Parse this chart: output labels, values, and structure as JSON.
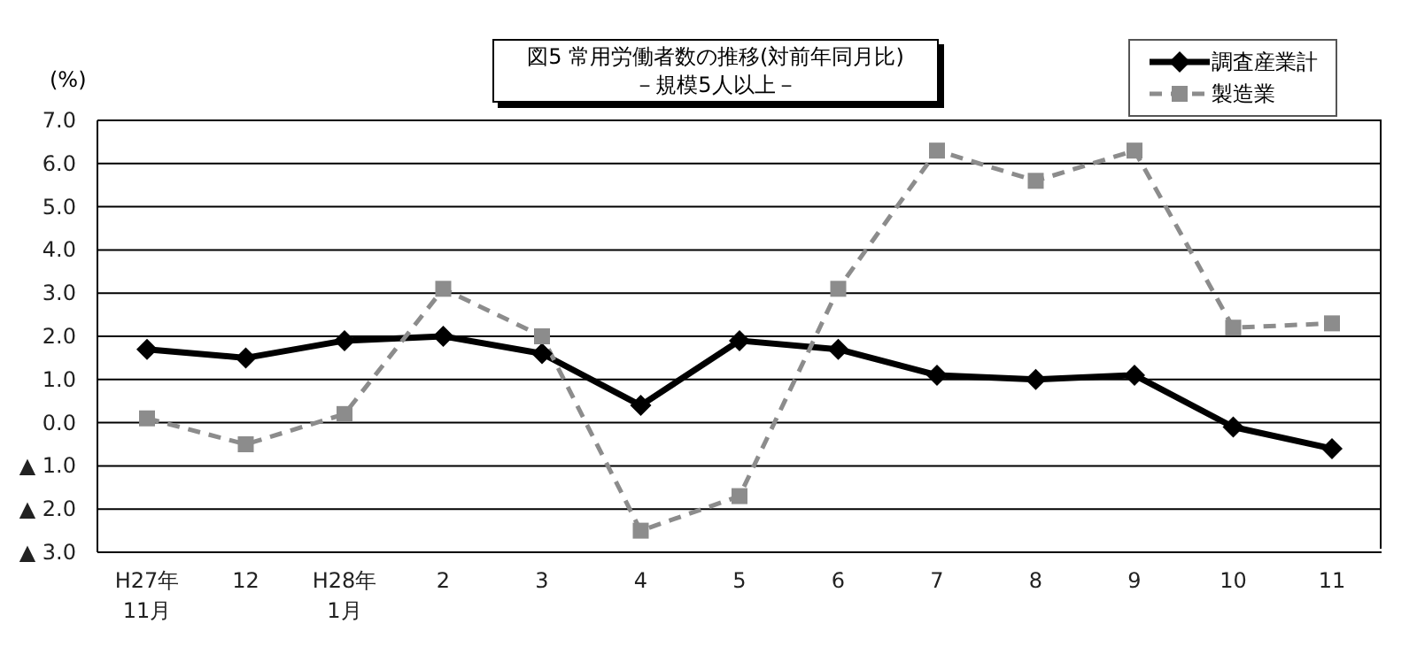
{
  "chart_data": {
    "type": "line",
    "title": "図5  常用労働者数の推移(対前年同月比)",
    "subtitle": "－規模5人以上－",
    "ylabel": "(%)",
    "categories": [
      "H27年\n11月",
      "12",
      "H28年\n1月",
      "2",
      "3",
      "4",
      "5",
      "6",
      "7",
      "8",
      "9",
      "10",
      "11"
    ],
    "series": [
      {
        "name": "調査産業計",
        "color": "#000000",
        "marker": "diamond",
        "line_style": "solid",
        "values": [
          1.7,
          1.5,
          1.9,
          2.0,
          1.6,
          0.4,
          1.9,
          1.7,
          1.1,
          1.0,
          1.1,
          -0.1,
          -0.6
        ]
      },
      {
        "name": "製造業",
        "color": "#8c8c8c",
        "marker": "square",
        "line_style": "dashed",
        "values": [
          0.1,
          -0.5,
          0.2,
          3.1,
          2.0,
          -2.5,
          -1.7,
          3.1,
          6.3,
          5.6,
          6.3,
          2.2,
          2.3
        ]
      }
    ],
    "ylim": [
      -3,
      7
    ],
    "yticks": [
      {
        "value": -3,
        "label": "▲ 3.0"
      },
      {
        "value": -2,
        "label": "▲ 2.0"
      },
      {
        "value": -1,
        "label": "▲ 1.0"
      },
      {
        "value": 0,
        "label": "0.0"
      },
      {
        "value": 1,
        "label": "1.0"
      },
      {
        "value": 2,
        "label": "2.0"
      },
      {
        "value": 3,
        "label": "3.0"
      },
      {
        "value": 4,
        "label": "4.0"
      },
      {
        "value": 5,
        "label": "5.0"
      },
      {
        "value": 6,
        "label": "6.0"
      },
      {
        "value": 7,
        "label": "7.0"
      }
    ],
    "grid": "y",
    "legend": "top right"
  }
}
